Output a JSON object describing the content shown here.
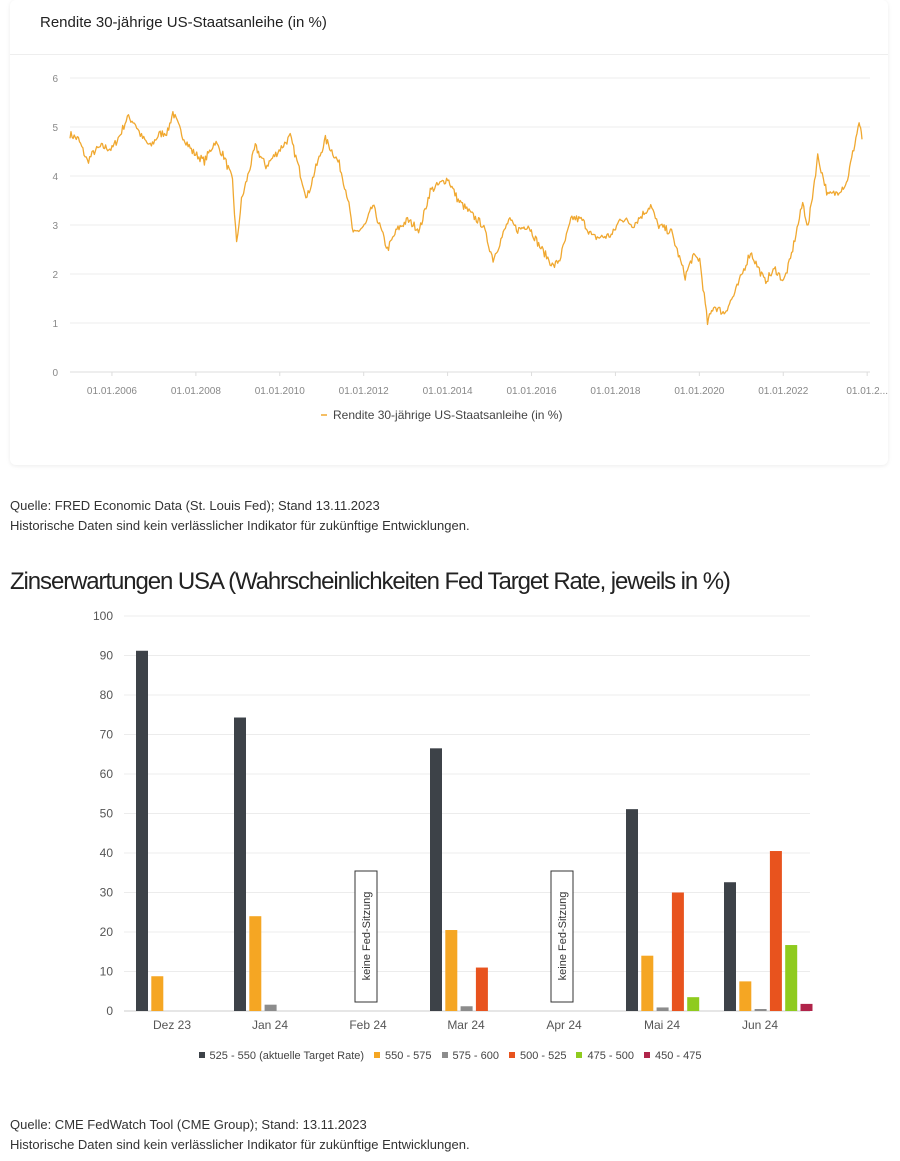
{
  "chart_data": [
    {
      "type": "line",
      "title": "Rendite 30-jährige US-Staatsanleihe (in %)",
      "xlabel": "",
      "ylabel": "",
      "ylim": [
        0,
        6
      ],
      "yticks": [
        "0",
        "1",
        "2",
        "3",
        "4",
        "5",
        "6"
      ],
      "xticks": [
        "01.01.2006",
        "01.01.2008",
        "01.01.2010",
        "01.01.2012",
        "01.01.2014",
        "01.01.2016",
        "01.01.2018",
        "01.01.2020",
        "01.01.2022",
        "01.01.2..."
      ],
      "x_range": [
        "2005-01-01",
        "2023-11-13"
      ],
      "grid": true,
      "legend_position": "bottom",
      "color": "#f0a830",
      "series": [
        {
          "name": "Rendite 30-jährige US-Staatsanleihe (in %)",
          "points": [
            [
              "2005-01-01",
              4.85
            ],
            [
              "2005-03-15",
              4.75
            ],
            [
              "2005-06-01",
              4.3
            ],
            [
              "2005-08-01",
              4.5
            ],
            [
              "2005-10-01",
              4.6
            ],
            [
              "2006-01-01",
              4.55
            ],
            [
              "2006-03-15",
              4.85
            ],
            [
              "2006-05-15",
              5.2
            ],
            [
              "2006-07-15",
              5.1
            ],
            [
              "2006-09-15",
              4.8
            ],
            [
              "2006-12-01",
              4.6
            ],
            [
              "2007-02-15",
              4.85
            ],
            [
              "2007-05-01",
              4.9
            ],
            [
              "2007-06-15",
              5.3
            ],
            [
              "2007-09-01",
              4.85
            ],
            [
              "2007-12-01",
              4.5
            ],
            [
              "2008-03-15",
              4.3
            ],
            [
              "2008-06-15",
              4.7
            ],
            [
              "2008-09-01",
              4.4
            ],
            [
              "2008-11-15",
              3.9
            ],
            [
              "2008-12-20",
              2.6
            ],
            [
              "2009-02-01",
              3.5
            ],
            [
              "2009-06-01",
              4.6
            ],
            [
              "2009-09-01",
              4.2
            ],
            [
              "2009-12-15",
              4.5
            ],
            [
              "2010-04-01",
              4.8
            ],
            [
              "2010-08-25",
              3.55
            ],
            [
              "2010-11-01",
              4.1
            ],
            [
              "2011-02-01",
              4.75
            ],
            [
              "2011-06-01",
              4.25
            ],
            [
              "2011-08-15",
              3.55
            ],
            [
              "2011-10-01",
              2.8
            ],
            [
              "2012-01-15",
              3.0
            ],
            [
              "2012-03-20",
              3.4
            ],
            [
              "2012-07-25",
              2.5
            ],
            [
              "2012-10-15",
              2.9
            ],
            [
              "2013-01-15",
              3.1
            ],
            [
              "2013-05-01",
              2.9
            ],
            [
              "2013-08-01",
              3.7
            ],
            [
              "2013-12-31",
              3.95
            ],
            [
              "2014-04-01",
              3.5
            ],
            [
              "2014-08-01",
              3.2
            ],
            [
              "2014-11-01",
              3.0
            ],
            [
              "2015-01-30",
              2.3
            ],
            [
              "2015-06-15",
              3.1
            ],
            [
              "2015-09-01",
              2.9
            ],
            [
              "2015-12-01",
              3.0
            ],
            [
              "2016-03-01",
              2.6
            ],
            [
              "2016-07-08",
              2.15
            ],
            [
              "2016-09-01",
              2.3
            ],
            [
              "2016-12-15",
              3.15
            ],
            [
              "2017-03-15",
              3.1
            ],
            [
              "2017-06-15",
              2.75
            ],
            [
              "2017-09-01",
              2.75
            ],
            [
              "2017-12-01",
              2.8
            ],
            [
              "2018-02-15",
              3.15
            ],
            [
              "2018-06-01",
              3.0
            ],
            [
              "2018-11-01",
              3.4
            ],
            [
              "2019-01-01",
              3.0
            ],
            [
              "2019-05-01",
              2.85
            ],
            [
              "2019-08-28",
              1.95
            ],
            [
              "2019-11-01",
              2.35
            ],
            [
              "2020-01-01",
              2.3
            ],
            [
              "2020-03-09",
              1.0
            ],
            [
              "2020-05-01",
              1.35
            ],
            [
              "2020-08-01",
              1.2
            ],
            [
              "2020-11-01",
              1.6
            ],
            [
              "2021-03-18",
              2.45
            ],
            [
              "2021-07-20",
              1.85
            ],
            [
              "2021-10-20",
              2.1
            ],
            [
              "2021-12-31",
              1.85
            ],
            [
              "2022-03-01",
              2.3
            ],
            [
              "2022-06-15",
              3.45
            ],
            [
              "2022-08-01",
              2.95
            ],
            [
              "2022-10-24",
              4.4
            ],
            [
              "2023-01-20",
              3.6
            ],
            [
              "2023-04-01",
              3.65
            ],
            [
              "2023-07-01",
              3.85
            ],
            [
              "2023-08-15",
              4.35
            ],
            [
              "2023-10-19",
              5.1
            ],
            [
              "2023-11-13",
              4.75
            ]
          ]
        }
      ]
    },
    {
      "type": "bar",
      "title": "Zinserwartungen USA (Wahrscheinlichkeiten Fed Target Rate, jeweils in %)",
      "xlabel": "",
      "ylabel": "",
      "ylim": [
        0,
        100
      ],
      "yticks": [
        "0",
        "10",
        "20",
        "30",
        "40",
        "50",
        "60",
        "70",
        "80",
        "90",
        "100"
      ],
      "categories": [
        "Dez 23",
        "Jan 24",
        "Feb 24",
        "Mar 24",
        "Apr 24",
        "Mai 24",
        "Jun 24"
      ],
      "grid": true,
      "legend_position": "bottom",
      "annotations": [
        {
          "category": "Feb 24",
          "text": "keine Fed-Sitzung"
        },
        {
          "category": "Apr 24",
          "text": "keine Fed-Sitzung"
        }
      ],
      "series": [
        {
          "name": "525 - 550 (aktuelle Target Rate)",
          "color": "#3d4248",
          "values": [
            91.2,
            74.3,
            null,
            66.5,
            null,
            51.1,
            32.6
          ]
        },
        {
          "name": "550 - 575",
          "color": "#f5a623",
          "values": [
            8.8,
            24.0,
            null,
            20.5,
            null,
            14.0,
            7.5
          ]
        },
        {
          "name": "575 - 600",
          "color": "#8c8c8c",
          "values": [
            null,
            1.6,
            null,
            1.2,
            null,
            0.9,
            0.5
          ]
        },
        {
          "name": "500 - 525",
          "color": "#e8531e",
          "values": [
            null,
            null,
            null,
            11.0,
            null,
            30.0,
            40.5
          ]
        },
        {
          "name": "475 - 500",
          "color": "#8fcb1e",
          "values": [
            null,
            null,
            null,
            null,
            null,
            3.5,
            16.7
          ]
        },
        {
          "name": "450 - 475",
          "color": "#b0244a",
          "values": [
            null,
            null,
            null,
            null,
            null,
            null,
            1.8
          ]
        }
      ]
    }
  ],
  "sources": {
    "first": {
      "source": "Quelle: FRED Economic Data (St. Louis Fed); Stand 13.11.2023",
      "disclaimer": "Historische Daten sind kein verlässlicher Indikator für zukünftige Entwicklungen."
    },
    "second": {
      "source": "Quelle: CME FedWatch Tool (CME Group); Stand: 13.11.2023",
      "disclaimer": "Historische Daten sind kein verlässlicher Indikator für zukünftige Entwicklungen."
    }
  }
}
